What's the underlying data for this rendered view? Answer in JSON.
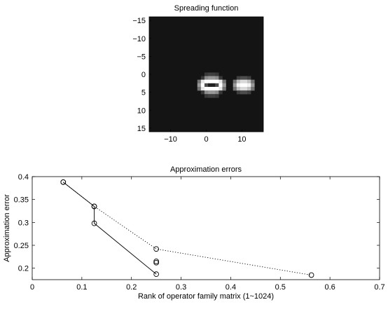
{
  "chart_data": [
    {
      "type": "heatmap",
      "title": "Spreading function",
      "xlabel": "",
      "ylabel": "",
      "xlim": [
        -16,
        16
      ],
      "ylim": [
        -16,
        16
      ],
      "y_reversed": true,
      "xticks": [
        -10,
        0,
        10
      ],
      "yticks": [
        -15,
        -10,
        -5,
        0,
        5,
        10,
        15
      ],
      "xtick_labels": [
        "−10",
        "0",
        "10"
      ],
      "ytick_labels": [
        "−15",
        "−10",
        "−5",
        "0",
        "5",
        "10",
        "15"
      ],
      "grid": false,
      "colormap": "gray",
      "background_intensity": 0.08,
      "cells": [
        {
          "x": 0,
          "y": 0,
          "v": 0.22
        },
        {
          "x": 1,
          "y": 0,
          "v": 0.25
        },
        {
          "x": 2,
          "y": 0,
          "v": 0.25
        },
        {
          "x": 3,
          "y": 0,
          "v": 0.22
        },
        {
          "x": -1,
          "y": 1,
          "v": 0.22
        },
        {
          "x": 0,
          "y": 1,
          "v": 0.55
        },
        {
          "x": 1,
          "y": 1,
          "v": 0.6
        },
        {
          "x": 2,
          "y": 1,
          "v": 0.6
        },
        {
          "x": 3,
          "y": 1,
          "v": 0.55
        },
        {
          "x": 4,
          "y": 1,
          "v": 0.22
        },
        {
          "x": -2,
          "y": 2,
          "v": 0.45
        },
        {
          "x": -1,
          "y": 2,
          "v": 0.9
        },
        {
          "x": 0,
          "y": 2,
          "v": 1.0
        },
        {
          "x": 1,
          "y": 2,
          "v": 1.0
        },
        {
          "x": 2,
          "y": 2,
          "v": 1.0
        },
        {
          "x": 3,
          "y": 2,
          "v": 1.0
        },
        {
          "x": 4,
          "y": 2,
          "v": 0.9
        },
        {
          "x": 5,
          "y": 2,
          "v": 0.45
        },
        {
          "x": -2,
          "y": 3,
          "v": 0.6
        },
        {
          "x": -1,
          "y": 3,
          "v": 1.0
        },
        {
          "x": 0,
          "y": 3,
          "v": 0.3
        },
        {
          "x": 1,
          "y": 3,
          "v": 0.12
        },
        {
          "x": 2,
          "y": 3,
          "v": 0.12
        },
        {
          "x": 3,
          "y": 3,
          "v": 0.3
        },
        {
          "x": 4,
          "y": 3,
          "v": 1.0
        },
        {
          "x": 5,
          "y": 3,
          "v": 0.6
        },
        {
          "x": -2,
          "y": 4,
          "v": 0.45
        },
        {
          "x": -1,
          "y": 4,
          "v": 0.9
        },
        {
          "x": 0,
          "y": 4,
          "v": 1.0
        },
        {
          "x": 1,
          "y": 4,
          "v": 1.0
        },
        {
          "x": 2,
          "y": 4,
          "v": 1.0
        },
        {
          "x": 3,
          "y": 4,
          "v": 1.0
        },
        {
          "x": 4,
          "y": 4,
          "v": 0.9
        },
        {
          "x": 5,
          "y": 4,
          "v": 0.45
        },
        {
          "x": -1,
          "y": 5,
          "v": 0.22
        },
        {
          "x": 0,
          "y": 5,
          "v": 0.55
        },
        {
          "x": 1,
          "y": 5,
          "v": 0.6
        },
        {
          "x": 2,
          "y": 5,
          "v": 0.6
        },
        {
          "x": 3,
          "y": 5,
          "v": 0.55
        },
        {
          "x": 4,
          "y": 5,
          "v": 0.22
        },
        {
          "x": 0,
          "y": 6,
          "v": 0.22
        },
        {
          "x": 1,
          "y": 6,
          "v": 0.25
        },
        {
          "x": 2,
          "y": 6,
          "v": 0.25
        },
        {
          "x": 3,
          "y": 6,
          "v": 0.22
        },
        {
          "x": 9,
          "y": 1,
          "v": 0.25
        },
        {
          "x": 10,
          "y": 1,
          "v": 0.3
        },
        {
          "x": 11,
          "y": 1,
          "v": 0.3
        },
        {
          "x": 12,
          "y": 1,
          "v": 0.25
        },
        {
          "x": 8,
          "y": 2,
          "v": 0.45
        },
        {
          "x": 9,
          "y": 2,
          "v": 0.75
        },
        {
          "x": 10,
          "y": 2,
          "v": 0.85
        },
        {
          "x": 11,
          "y": 2,
          "v": 0.85
        },
        {
          "x": 12,
          "y": 2,
          "v": 0.75
        },
        {
          "x": 13,
          "y": 2,
          "v": 0.45
        },
        {
          "x": 8,
          "y": 3,
          "v": 0.6
        },
        {
          "x": 9,
          "y": 3,
          "v": 0.95
        },
        {
          "x": 10,
          "y": 3,
          "v": 1.0
        },
        {
          "x": 11,
          "y": 3,
          "v": 1.0
        },
        {
          "x": 12,
          "y": 3,
          "v": 0.95
        },
        {
          "x": 13,
          "y": 3,
          "v": 0.6
        },
        {
          "x": 8,
          "y": 4,
          "v": 0.45
        },
        {
          "x": 9,
          "y": 4,
          "v": 0.75
        },
        {
          "x": 10,
          "y": 4,
          "v": 0.85
        },
        {
          "x": 11,
          "y": 4,
          "v": 0.85
        },
        {
          "x": 12,
          "y": 4,
          "v": 0.75
        },
        {
          "x": 13,
          "y": 4,
          "v": 0.45
        },
        {
          "x": 9,
          "y": 5,
          "v": 0.25
        },
        {
          "x": 10,
          "y": 5,
          "v": 0.3
        },
        {
          "x": 11,
          "y": 5,
          "v": 0.3
        },
        {
          "x": 12,
          "y": 5,
          "v": 0.25
        }
      ]
    },
    {
      "type": "line",
      "title": "Approximation errors",
      "xlabel": "Rank of operator family matrix (1~1024)",
      "ylabel": "Approximation error",
      "xlim": [
        0,
        0.7
      ],
      "ylim": [
        0.175,
        0.4
      ],
      "xticks": [
        0,
        0.1,
        0.2,
        0.3,
        0.4,
        0.5,
        0.6,
        0.7
      ],
      "yticks": [
        0.2,
        0.25,
        0.3,
        0.35,
        0.4
      ],
      "xtick_labels": [
        "0",
        "0.1",
        "0.2",
        "0.3",
        "0.4",
        "0.5",
        "0.6",
        "0.7"
      ],
      "ytick_labels": [
        "0.2",
        "0.25",
        "0.3",
        "0.35",
        "0.4"
      ],
      "grid": false,
      "series": [
        {
          "style": "solid",
          "marker": "circle",
          "color": "#000000",
          "x": [
            0.0625,
            0.125,
            0.125,
            0.25
          ],
          "y": [
            0.388,
            0.335,
            0.298,
            0.187
          ]
        },
        {
          "style": "dotted",
          "marker": "circle",
          "color": "#000000",
          "x": [
            0.0625,
            0.125,
            0.25,
            0.5625
          ],
          "y": [
            0.388,
            0.335,
            0.242,
            0.185
          ]
        },
        {
          "style": "none",
          "marker": "circle",
          "color": "#000000",
          "x": [
            0.25,
            0.25
          ],
          "y": [
            0.215,
            0.212
          ]
        }
      ]
    }
  ]
}
